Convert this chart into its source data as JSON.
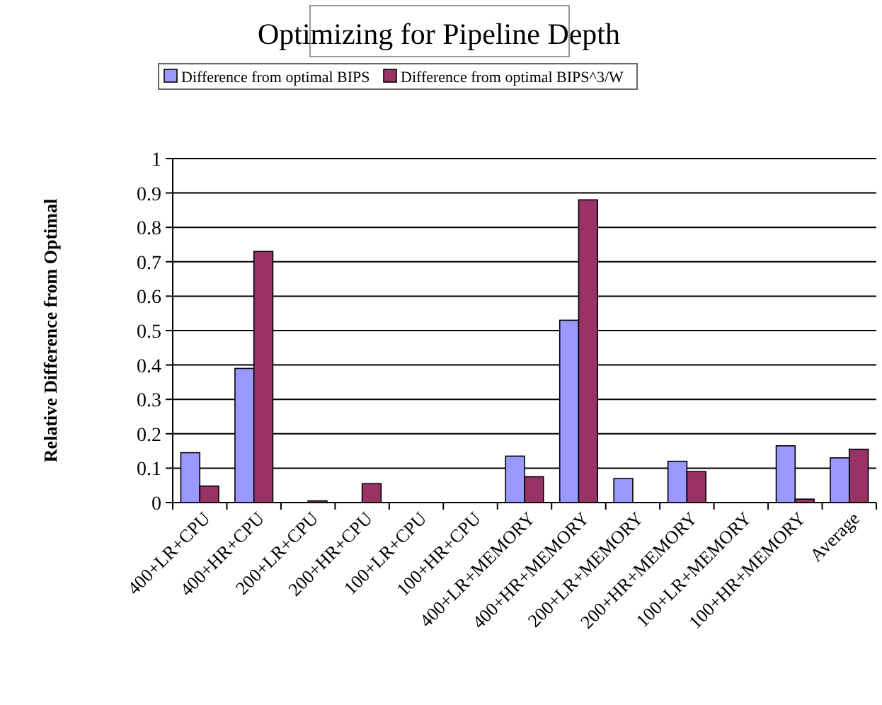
{
  "chart_data": {
    "type": "bar",
    "title": "Optimizing for Pipeline Depth",
    "ylabel": "Relative Difference from Optimal",
    "categories": [
      "400+LR+CPU",
      "400+HR+CPU",
      "200+LR+CPU",
      "200+HR+CPU",
      "100+LR+CPU",
      "100+HR+CPU",
      "400+LR+MEMORY",
      "400+HR+MEMORY",
      "200+LR+MEMORY",
      "200+HR+MEMORY",
      "100+LR+MEMORY",
      "100+HR+MEMORY",
      "Average"
    ],
    "series": [
      {
        "name": "Difference from optimal BIPS",
        "color": "#9999ff",
        "values": [
          0.145,
          0.39,
          0,
          0,
          0,
          0,
          0.135,
          0.53,
          0.07,
          0.12,
          0,
          0.165,
          0.13
        ]
      },
      {
        "name": "Difference from optimal BIPS^3/W",
        "color": "#993366",
        "values": [
          0.048,
          0.73,
          0.005,
          0.055,
          0,
          0,
          0.075,
          0.88,
          0,
          0.09,
          0,
          0.01,
          0.155
        ]
      }
    ],
    "ylim": [
      0,
      1
    ],
    "yticks": [
      0,
      0.1,
      0.2,
      0.3,
      0.4,
      0.5,
      0.6,
      0.7,
      0.8,
      0.9,
      1
    ],
    "grid": "y",
    "legend": "top"
  }
}
